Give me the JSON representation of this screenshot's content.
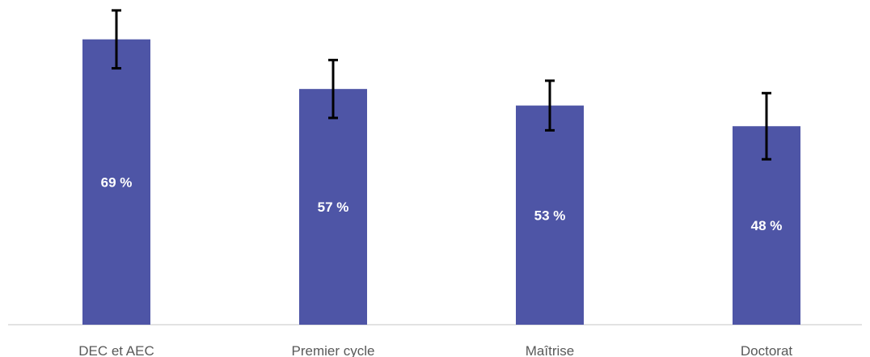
{
  "chart_data": {
    "type": "bar",
    "title": "",
    "xlabel": "",
    "ylabel": "",
    "categories": [
      "DEC et AEC",
      "Premier cycle",
      "Maîtrise",
      "Doctorat"
    ],
    "values": [
      69,
      57,
      53,
      48
    ],
    "value_labels": [
      "69 %",
      "57 %",
      "53 %",
      "48 %"
    ],
    "error_bars": [
      {
        "low": 62,
        "high": 76
      },
      {
        "low": 50,
        "high": 64
      },
      {
        "low": 47,
        "high": 59
      },
      {
        "low": 40,
        "high": 56
      }
    ],
    "unit": "%",
    "ylim": [
      0,
      80
    ],
    "grid": false,
    "legend": "none",
    "colors": {
      "bar": "#4e55a6",
      "error_bar": "#000000",
      "axis": "#d9d9d9",
      "bar_label": "#ffffff",
      "category_label": "#595959"
    }
  }
}
